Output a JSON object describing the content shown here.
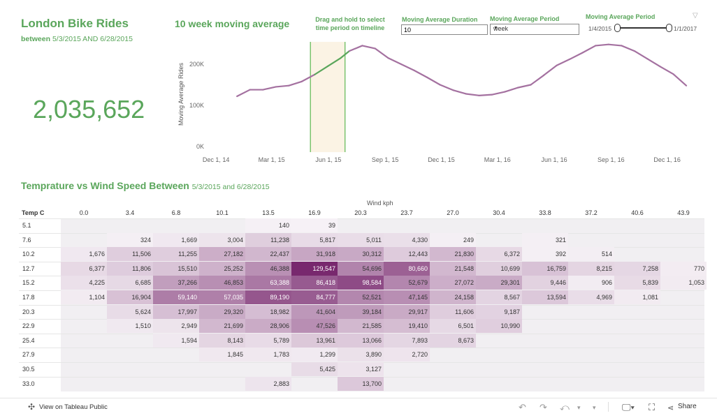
{
  "header": {
    "title": "London Bike Rides",
    "subtitle_prefix": "between",
    "subtitle_range": "5/3/2015 AND 6/28/2015",
    "total": "2,035,652",
    "ma_title": "10  week moving average",
    "drag_hint": "Drag and hold to select time period on timeline"
  },
  "controls": {
    "duration_label": "Moving Average Duration",
    "duration_value": "10",
    "period_label": "Moving Average Period",
    "period_value": "week",
    "range_label": "Moving Average Period",
    "range_start": "1/4/2015",
    "range_end": "1/1/2017",
    "filter_icon": "filter-icon"
  },
  "chart_data": {
    "type": "line",
    "ylabel": "Moving Average Rides",
    "yticks": [
      "0K",
      "100K",
      "200K"
    ],
    "ylim": [
      0,
      260000
    ],
    "xticks": [
      "Dec 1, 14",
      "Mar 1, 15",
      "Jun 1, 15",
      "Sep 1, 15",
      "Dec 1, 15",
      "Mar 1, 16",
      "Jun 1, 16",
      "Sep 1, 16",
      "Dec 1, 16"
    ],
    "highlight": [
      "5/3/2015",
      "6/28/2015"
    ],
    "series": [
      {
        "colors": {
          "normal": "#a471a0",
          "highlight": "#5aa65b"
        },
        "x": [
          "2015-01-04",
          "2015-01-25",
          "2015-02-15",
          "2015-03-08",
          "2015-03-29",
          "2015-04-19",
          "2015-05-10",
          "2015-05-31",
          "2015-06-21",
          "2015-07-05",
          "2015-07-26",
          "2015-08-16",
          "2015-09-06",
          "2015-09-27",
          "2015-10-18",
          "2015-11-08",
          "2015-11-29",
          "2015-12-20",
          "2016-01-10",
          "2016-01-31",
          "2016-02-21",
          "2016-03-13",
          "2016-04-03",
          "2016-04-24",
          "2016-05-15",
          "2016-06-05",
          "2016-06-26",
          "2016-07-17",
          "2016-08-07",
          "2016-08-28",
          "2016-09-18",
          "2016-10-09",
          "2016-10-30",
          "2016-11-20",
          "2016-12-11",
          "2017-01-01"
        ],
        "y": [
          122000,
          138000,
          138000,
          145000,
          148000,
          158000,
          175000,
          195000,
          215000,
          232000,
          245000,
          238000,
          215000,
          200000,
          185000,
          168000,
          150000,
          137000,
          128000,
          124000,
          126000,
          133000,
          143000,
          150000,
          173000,
          197000,
          212000,
          228000,
          245000,
          248000,
          245000,
          232000,
          213000,
          194000,
          176000,
          148000
        ]
      }
    ]
  },
  "heatmap": {
    "title": "Temprature vs Wind Speed Between",
    "title_range": "5/3/2015 and 6/28/2015",
    "col_axis_label": "Wind kph",
    "row_axis_label": "Temp C",
    "cols": [
      "0.0",
      "3.4",
      "6.8",
      "10.1",
      "13.5",
      "16.9",
      "20.3",
      "23.7",
      "27.0",
      "30.4",
      "33.8",
      "37.2",
      "40.6",
      "43.9"
    ],
    "rows": [
      {
        "label": "5.1",
        "cells": [
          "",
          "",
          "",
          "",
          "140",
          "39",
          "",
          "",
          "",
          "",
          "",
          "",
          "",
          ""
        ]
      },
      {
        "label": "7.6",
        "cells": [
          "",
          "324",
          "1,669",
          "3,004",
          "11,238",
          "5,817",
          "5,011",
          "4,330",
          "249",
          "",
          "321",
          "",
          "",
          ""
        ]
      },
      {
        "label": "10.2",
        "cells": [
          "1,676",
          "11,506",
          "11,255",
          "27,182",
          "22,437",
          "31,918",
          "30,312",
          "12,443",
          "21,830",
          "6,372",
          "392",
          "514",
          "",
          ""
        ]
      },
      {
        "label": "12.7",
        "cells": [
          "6,377",
          "11,806",
          "15,510",
          "25,252",
          "46,388",
          "129,547",
          "54,696",
          "80,660",
          "21,548",
          "10,699",
          "16,759",
          "8,215",
          "7,258",
          "770"
        ]
      },
      {
        "label": "15.2",
        "cells": [
          "4,225",
          "6,685",
          "37,266",
          "46,853",
          "63,388",
          "86,418",
          "98,584",
          "52,679",
          "27,072",
          "29,301",
          "9,446",
          "906",
          "5,839",
          "1,053"
        ]
      },
      {
        "label": "17.8",
        "cells": [
          "1,104",
          "16,904",
          "59,140",
          "57,035",
          "89,190",
          "84,777",
          "52,521",
          "47,145",
          "24,158",
          "8,567",
          "13,594",
          "4,969",
          "1,081",
          ""
        ]
      },
      {
        "label": "20.3",
        "cells": [
          "",
          "5,624",
          "17,997",
          "29,320",
          "18,982",
          "41,604",
          "39,184",
          "29,917",
          "11,606",
          "9,187",
          "",
          "",
          "",
          ""
        ]
      },
      {
        "label": "22.9",
        "cells": [
          "",
          "1,510",
          "2,949",
          "21,699",
          "28,906",
          "47,526",
          "21,585",
          "19,410",
          "6,501",
          "10,990",
          "",
          "",
          "",
          ""
        ]
      },
      {
        "label": "25.4",
        "cells": [
          "",
          "",
          "1,594",
          "8,143",
          "5,789",
          "13,961",
          "13,066",
          "7,893",
          "8,673",
          "",
          "",
          "",
          "",
          ""
        ]
      },
      {
        "label": "27.9",
        "cells": [
          "",
          "",
          "",
          "1,845",
          "1,783",
          "1,299",
          "3,890",
          "2,720",
          "",
          "",
          "",
          "",
          "",
          ""
        ]
      },
      {
        "label": "30.5",
        "cells": [
          "",
          "",
          "",
          "",
          "",
          "5,425",
          "3,127",
          "",
          "",
          "",
          "",
          "",
          "",
          ""
        ]
      },
      {
        "label": "33.0",
        "cells": [
          "",
          "",
          "",
          "",
          "2,883",
          "",
          "13,700",
          "",
          "",
          "",
          "",
          "",
          "",
          ""
        ]
      }
    ]
  },
  "footer": {
    "view_link": "View on Tableau Public",
    "share_label": "Share"
  }
}
